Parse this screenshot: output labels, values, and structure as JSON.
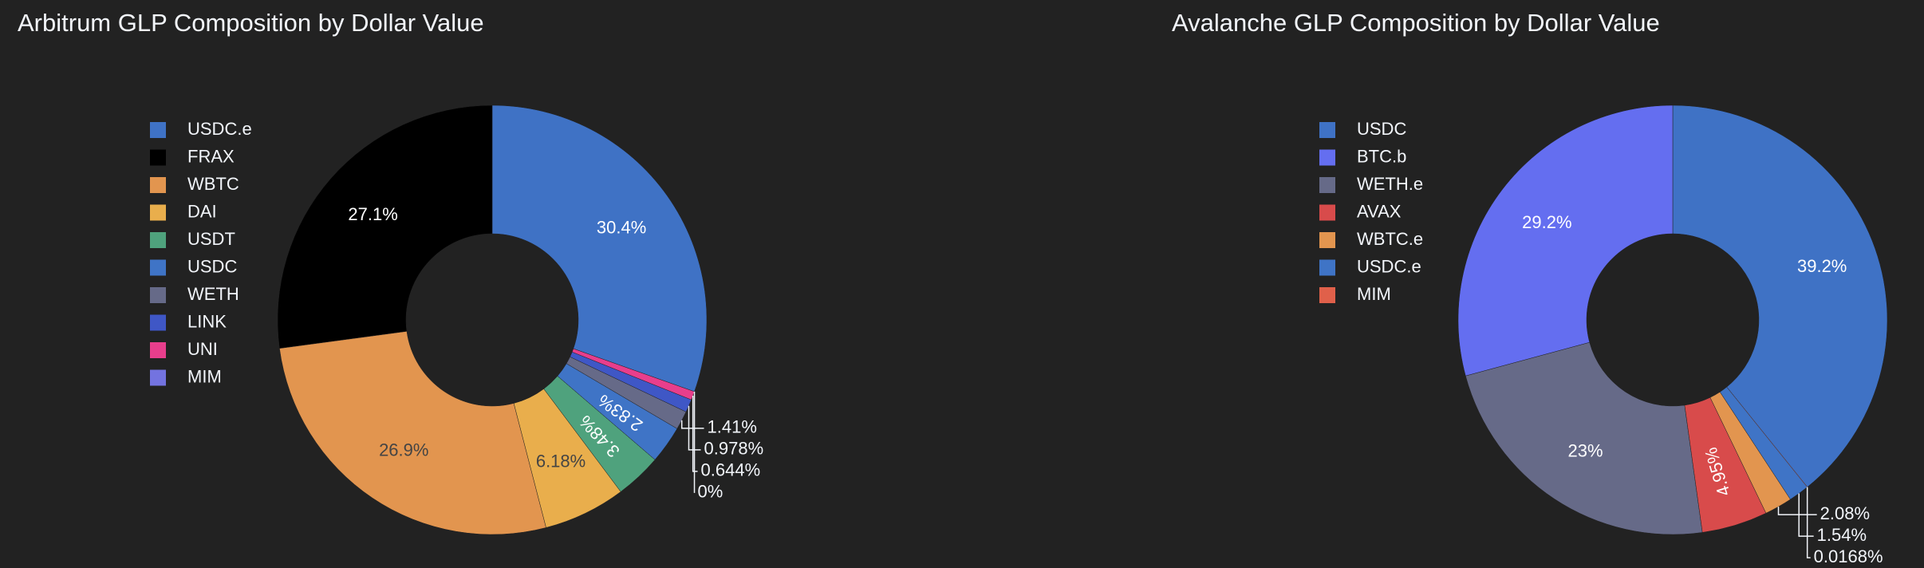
{
  "chart_data": [
    {
      "type": "pie",
      "title": "Arbitrum GLP Composition by Dollar Value",
      "categories": [
        "USDC.e",
        "FRAX",
        "WBTC",
        "DAI",
        "USDT",
        "USDC",
        "WETH",
        "LINK",
        "UNI",
        "MIM"
      ],
      "values": [
        30.4,
        27.1,
        26.9,
        6.18,
        3.48,
        2.83,
        1.41,
        0.978,
        0.644,
        0
      ],
      "value_labels": [
        "30.4%",
        "27.1%",
        "26.9%",
        "6.18%",
        "3.48%",
        "2.83%",
        "1.41%",
        "0.978%",
        "0.644%",
        "0%"
      ],
      "colors": [
        "#3f72c5",
        "#000000",
        "#e2954f",
        "#e9ae4c",
        "#4fa27d",
        "#3f74c6",
        "#666a88",
        "#3f57c6",
        "#e83e8c",
        "#7373e0"
      ]
    },
    {
      "type": "pie",
      "title": "Avalanche GLP Composition by Dollar Value",
      "categories": [
        "USDC",
        "BTC.b",
        "WETH.e",
        "AVAX",
        "WBTC.e",
        "USDC.e",
        "MIM"
      ],
      "values": [
        39.2,
        29.2,
        23,
        4.95,
        2.08,
        1.54,
        0.0168
      ],
      "value_labels": [
        "39.2%",
        "29.2%",
        "23%",
        "4.95%",
        "2.08%",
        "1.54%",
        "0.0168%"
      ],
      "colors": [
        "#3f72c5",
        "#646ef0",
        "#666a88",
        "#d84b4b",
        "#e2954f",
        "#3f74c6",
        "#e0604a"
      ]
    }
  ]
}
